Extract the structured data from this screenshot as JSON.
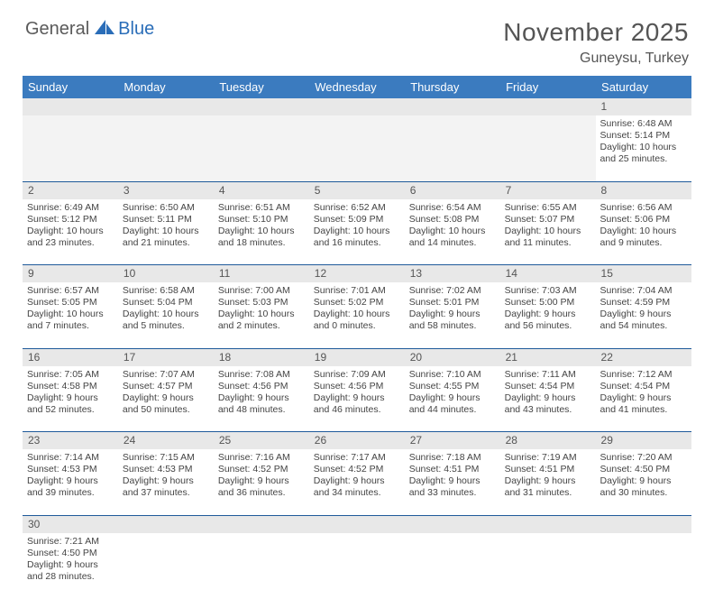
{
  "logo": {
    "text1": "General",
    "text2": "Blue"
  },
  "title": "November 2025",
  "location": "Guneysu, Turkey",
  "colors": {
    "header_bg": "#3b7bbf",
    "header_text": "#ffffff",
    "daynum_bg": "#e8e8e8",
    "border": "#1f5a9a",
    "logo_blue": "#2a6db8",
    "text": "#444444"
  },
  "weekdays": [
    "Sunday",
    "Monday",
    "Tuesday",
    "Wednesday",
    "Thursday",
    "Friday",
    "Saturday"
  ],
  "weeks": [
    [
      null,
      null,
      null,
      null,
      null,
      null,
      {
        "n": "1",
        "sr": "6:48 AM",
        "ss": "5:14 PM",
        "dl": "10 hours and 25 minutes."
      }
    ],
    [
      {
        "n": "2",
        "sr": "6:49 AM",
        "ss": "5:12 PM",
        "dl": "10 hours and 23 minutes."
      },
      {
        "n": "3",
        "sr": "6:50 AM",
        "ss": "5:11 PM",
        "dl": "10 hours and 21 minutes."
      },
      {
        "n": "4",
        "sr": "6:51 AM",
        "ss": "5:10 PM",
        "dl": "10 hours and 18 minutes."
      },
      {
        "n": "5",
        "sr": "6:52 AM",
        "ss": "5:09 PM",
        "dl": "10 hours and 16 minutes."
      },
      {
        "n": "6",
        "sr": "6:54 AM",
        "ss": "5:08 PM",
        "dl": "10 hours and 14 minutes."
      },
      {
        "n": "7",
        "sr": "6:55 AM",
        "ss": "5:07 PM",
        "dl": "10 hours and 11 minutes."
      },
      {
        "n": "8",
        "sr": "6:56 AM",
        "ss": "5:06 PM",
        "dl": "10 hours and 9 minutes."
      }
    ],
    [
      {
        "n": "9",
        "sr": "6:57 AM",
        "ss": "5:05 PM",
        "dl": "10 hours and 7 minutes."
      },
      {
        "n": "10",
        "sr": "6:58 AM",
        "ss": "5:04 PM",
        "dl": "10 hours and 5 minutes."
      },
      {
        "n": "11",
        "sr": "7:00 AM",
        "ss": "5:03 PM",
        "dl": "10 hours and 2 minutes."
      },
      {
        "n": "12",
        "sr": "7:01 AM",
        "ss": "5:02 PM",
        "dl": "10 hours and 0 minutes."
      },
      {
        "n": "13",
        "sr": "7:02 AM",
        "ss": "5:01 PM",
        "dl": "9 hours and 58 minutes."
      },
      {
        "n": "14",
        "sr": "7:03 AM",
        "ss": "5:00 PM",
        "dl": "9 hours and 56 minutes."
      },
      {
        "n": "15",
        "sr": "7:04 AM",
        "ss": "4:59 PM",
        "dl": "9 hours and 54 minutes."
      }
    ],
    [
      {
        "n": "16",
        "sr": "7:05 AM",
        "ss": "4:58 PM",
        "dl": "9 hours and 52 minutes."
      },
      {
        "n": "17",
        "sr": "7:07 AM",
        "ss": "4:57 PM",
        "dl": "9 hours and 50 minutes."
      },
      {
        "n": "18",
        "sr": "7:08 AM",
        "ss": "4:56 PM",
        "dl": "9 hours and 48 minutes."
      },
      {
        "n": "19",
        "sr": "7:09 AM",
        "ss": "4:56 PM",
        "dl": "9 hours and 46 minutes."
      },
      {
        "n": "20",
        "sr": "7:10 AM",
        "ss": "4:55 PM",
        "dl": "9 hours and 44 minutes."
      },
      {
        "n": "21",
        "sr": "7:11 AM",
        "ss": "4:54 PM",
        "dl": "9 hours and 43 minutes."
      },
      {
        "n": "22",
        "sr": "7:12 AM",
        "ss": "4:54 PM",
        "dl": "9 hours and 41 minutes."
      }
    ],
    [
      {
        "n": "23",
        "sr": "7:14 AM",
        "ss": "4:53 PM",
        "dl": "9 hours and 39 minutes."
      },
      {
        "n": "24",
        "sr": "7:15 AM",
        "ss": "4:53 PM",
        "dl": "9 hours and 37 minutes."
      },
      {
        "n": "25",
        "sr": "7:16 AM",
        "ss": "4:52 PM",
        "dl": "9 hours and 36 minutes."
      },
      {
        "n": "26",
        "sr": "7:17 AM",
        "ss": "4:52 PM",
        "dl": "9 hours and 34 minutes."
      },
      {
        "n": "27",
        "sr": "7:18 AM",
        "ss": "4:51 PM",
        "dl": "9 hours and 33 minutes."
      },
      {
        "n": "28",
        "sr": "7:19 AM",
        "ss": "4:51 PM",
        "dl": "9 hours and 31 minutes."
      },
      {
        "n": "29",
        "sr": "7:20 AM",
        "ss": "4:50 PM",
        "dl": "9 hours and 30 minutes."
      }
    ],
    [
      {
        "n": "30",
        "sr": "7:21 AM",
        "ss": "4:50 PM",
        "dl": "9 hours and 28 minutes."
      },
      null,
      null,
      null,
      null,
      null,
      null
    ]
  ]
}
